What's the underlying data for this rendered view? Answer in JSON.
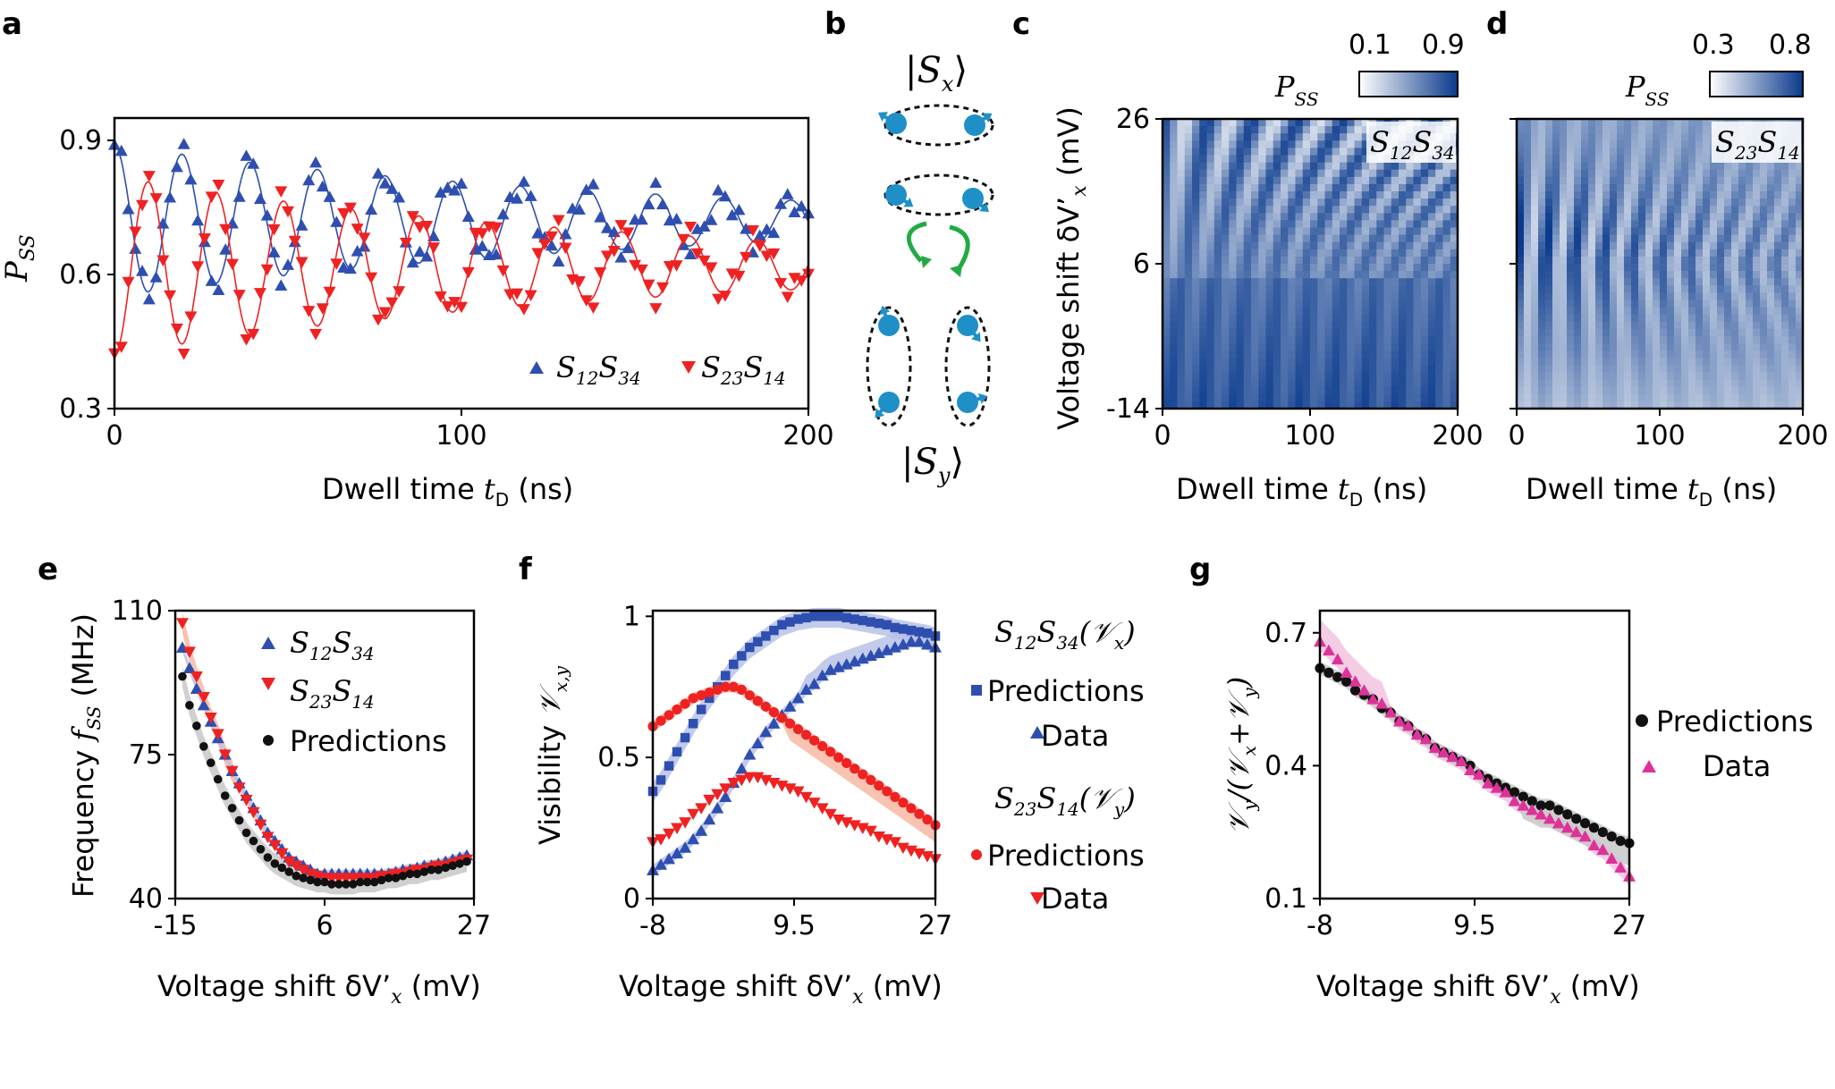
{
  "colors": {
    "blue": "#2e4fb0",
    "red": "#ee2222",
    "black": "#111111",
    "magenta": "#dd3399",
    "green": "#22aa44",
    "spin": "#1f8fc7",
    "band_blue": "#b8c2e6",
    "band_red": "#f7b9a3",
    "band_gray": "#c8c8c8",
    "band_pink": "#f2c4e0"
  },
  "panels": {
    "a": {
      "label": "a",
      "ylabel_main": "P",
      "ylabel_sub": "SS",
      "xlabel_main": "Dwell time ",
      "xlabel_var": "t",
      "xlabel_sub": "D",
      "xlabel_unit": " (ns)",
      "legend": [
        {
          "main": "S",
          "sub1": "12",
          "main2": "S",
          "sub2": "34"
        },
        {
          "main": "S",
          "sub1": "23",
          "main2": "S",
          "sub2": "14"
        }
      ]
    },
    "b": {
      "label": "b",
      "top_ket": "S",
      "top_sub": "x",
      "bottom_ket": "S",
      "bottom_sub": "y"
    },
    "c": {
      "label": "c",
      "cb_label": "P",
      "cb_sub": "SS",
      "cb_min": "0.1",
      "cb_max": "0.9",
      "inset_main": "S",
      "inset_sub1": "12",
      "inset_main2": "S",
      "inset_sub2": "34",
      "ylabel": "Voltage shift δV’",
      "ylabel_sub": "x",
      "ylabel_unit": " (mV)",
      "xlabel_main": "Dwell time ",
      "xlabel_var": "t",
      "xlabel_sub": "D",
      "xlabel_unit": " (ns)"
    },
    "d": {
      "label": "d",
      "cb_label": "P",
      "cb_sub": "SS",
      "cb_min": "0.3",
      "cb_max": "0.8",
      "inset_main": "S",
      "inset_sub1": "23",
      "inset_main2": "S",
      "inset_sub2": "14",
      "xlabel_main": "Dwell time ",
      "xlabel_var": "t",
      "xlabel_sub": "D",
      "xlabel_unit": " (ns)"
    },
    "e": {
      "label": "e",
      "ylabel_main": "Frequency ",
      "ylabel_var": "f",
      "ylabel_sub": "SS",
      "ylabel_unit": " (MHz)",
      "xlabel": "Voltage shift δV’",
      "xlabel_sub": "x",
      "xlabel_unit": " (mV)",
      "legend": [
        {
          "main": "S",
          "sub1": "12",
          "main2": "S",
          "sub2": "34"
        },
        {
          "main": "S",
          "sub1": "23",
          "main2": "S",
          "sub2": "14"
        },
        {
          "text": "Predictions"
        }
      ]
    },
    "f": {
      "label": "f",
      "ylabel_main": "Visibility ",
      "ylabel_var": "𝒱",
      "ylabel_sub": "x,y",
      "xlabel": "Voltage shift δV’",
      "xlabel_sub": "x",
      "xlabel_unit": " (mV)",
      "legend_head1": {
        "main": "S",
        "sub1": "12",
        "main2": "S",
        "sub2": "34",
        "paren": "(𝒱",
        "psub": "x",
        "close": ")"
      },
      "legend_head2": {
        "main": "S",
        "sub1": "23",
        "main2": "S",
        "sub2": "14",
        "paren": "(𝒱",
        "psub": "y",
        "close": ")"
      },
      "pred": "Predictions",
      "data": "Data"
    },
    "g": {
      "label": "g",
      "ylabel": "𝒱",
      "ylabel_sub": "y",
      "ylabel_mid": "/(𝒱",
      "ylabel_sub2": "x",
      "ylabel_plus": "+𝒱",
      "ylabel_sub3": "y",
      "ylabel_close": ")",
      "xlabel": "Voltage shift δV’",
      "xlabel_sub": "x",
      "xlabel_unit": " (mV)",
      "pred": "Predictions",
      "data": "Data"
    }
  },
  "chart_data": [
    {
      "id": "a",
      "type": "scatter",
      "xlim": [
        0,
        200
      ],
      "ylim": [
        0.3,
        0.95
      ],
      "xticks": [
        "0",
        "100",
        "200"
      ],
      "yticks": [
        "0.3",
        "0.6",
        "0.9"
      ],
      "series": [
        {
          "name": "S12S34",
          "marker": "triangle-up",
          "model": {
            "offset": 0.72,
            "amp": 0.17,
            "period": 19.5,
            "tau": 150,
            "phase": 0.0
          }
        },
        {
          "name": "S23S14",
          "marker": "triangle-down",
          "model": {
            "offset": 0.62,
            "amp": 0.2,
            "period": 19.5,
            "tau": 150,
            "phase": 3.14
          }
        }
      ]
    },
    {
      "id": "c",
      "type": "heatmap",
      "xlim": [
        0,
        200
      ],
      "ylim": [
        -14,
        26
      ],
      "xticks": [
        "0",
        "100",
        "200"
      ],
      "yticks": [
        "-14",
        "6",
        "26"
      ],
      "crange": [
        0.1,
        0.9
      ]
    },
    {
      "id": "d",
      "type": "heatmap",
      "xlim": [
        0,
        200
      ],
      "ylim": [
        -14,
        26
      ],
      "xticks": [
        "0",
        "100",
        "200"
      ],
      "crange": [
        0.3,
        0.8
      ]
    },
    {
      "id": "e",
      "type": "scatter",
      "xlim": [
        -15,
        27
      ],
      "ylim": [
        40,
        110
      ],
      "xticks": [
        "-15",
        "6",
        "27"
      ],
      "yticks": [
        "40",
        "75",
        "110"
      ],
      "series": [
        {
          "name": "S12S34",
          "x": [
            -14,
            -13,
            -12,
            -11,
            -10,
            -9,
            -8,
            -7,
            -6,
            -5,
            -4,
            -3,
            -2,
            -1,
            0,
            1,
            2,
            3,
            4,
            5,
            6,
            7,
            8,
            9,
            10,
            11,
            12,
            13,
            14,
            15,
            16,
            17,
            18,
            19,
            20,
            21,
            22,
            23,
            24,
            25,
            26
          ],
          "y": [
            101,
            96,
            91,
            87,
            83,
            79,
            75,
            71,
            68,
            65,
            62,
            59,
            56,
            54,
            52,
            50,
            49,
            48,
            47,
            46,
            46,
            46,
            46,
            46,
            46,
            46,
            46,
            46,
            46,
            46,
            46.5,
            47,
            47,
            47.5,
            48,
            48,
            48.5,
            49,
            49.5,
            50,
            50.5
          ]
        },
        {
          "name": "S23S14",
          "x": [
            -14,
            -13,
            -12,
            -11,
            -10,
            -9,
            -8,
            -7,
            -6,
            -5,
            -4,
            -3,
            -2,
            -1,
            0,
            1,
            2,
            3,
            4,
            5,
            6,
            7,
            8,
            9,
            10,
            11,
            12,
            13,
            14,
            15,
            16,
            17,
            18,
            19,
            20,
            21,
            22,
            23,
            24,
            25,
            26
          ],
          "y": [
            107,
            100,
            94,
            89,
            84,
            80,
            75,
            71,
            67,
            64,
            61,
            58,
            55,
            53,
            51,
            49,
            48,
            47,
            46,
            45.5,
            45,
            45,
            45,
            45,
            45,
            45,
            45,
            45,
            45.5,
            45.5,
            46,
            46,
            46.5,
            47,
            47,
            47.5,
            48,
            48,
            48.5,
            49,
            49.5
          ]
        },
        {
          "name": "Predictions",
          "x": [
            -14,
            -13,
            -12,
            -11,
            -10,
            -9,
            -8,
            -7,
            -6,
            -5,
            -4,
            -3,
            -2,
            -1,
            0,
            1,
            2,
            3,
            4,
            5,
            6,
            7,
            8,
            9,
            10,
            11,
            12,
            13,
            14,
            15,
            16,
            17,
            18,
            19,
            20,
            21,
            22,
            23,
            24,
            25,
            26
          ],
          "y": [
            94,
            87,
            82,
            77,
            73,
            69,
            65,
            62,
            59,
            56,
            54,
            52,
            50,
            48.5,
            47.5,
            46.5,
            45.5,
            45,
            44.5,
            44,
            44,
            43.5,
            43.5,
            43.5,
            43.5,
            44,
            44,
            44,
            44.5,
            45,
            45,
            45.5,
            46,
            46,
            46.5,
            47,
            47,
            47.5,
            48,
            48.5,
            49
          ]
        }
      ]
    },
    {
      "id": "f",
      "type": "scatter",
      "xlim": [
        -8,
        27
      ],
      "ylim": [
        0,
        1.02
      ],
      "xticks": [
        "-8",
        "9.5",
        "27"
      ],
      "yticks": [
        "0",
        "0.5",
        "1"
      ],
      "series": [
        {
          "name": "S12S34 Predictions",
          "marker": "square",
          "x": [
            -8,
            -7,
            -6,
            -5,
            -4,
            -3,
            -2,
            -1,
            0,
            1,
            2,
            3,
            4,
            5,
            6,
            7,
            8,
            9,
            10,
            11,
            12,
            13,
            14,
            15,
            16,
            17,
            18,
            19,
            20,
            21,
            22,
            23,
            24,
            25,
            26,
            27
          ],
          "y": [
            0.38,
            0.42,
            0.47,
            0.52,
            0.57,
            0.62,
            0.67,
            0.71,
            0.75,
            0.79,
            0.83,
            0.86,
            0.89,
            0.91,
            0.93,
            0.95,
            0.97,
            0.98,
            0.99,
            0.995,
            1.0,
            1.0,
            1.0,
            1.0,
            0.995,
            0.99,
            0.985,
            0.98,
            0.975,
            0.97,
            0.96,
            0.955,
            0.95,
            0.945,
            0.94,
            0.93
          ]
        },
        {
          "name": "S12S34 Data",
          "marker": "triangle-up",
          "x": [
            -8,
            -7,
            -6,
            -5,
            -4,
            -3,
            -2,
            -1,
            0,
            1,
            2,
            3,
            4,
            5,
            6,
            7,
            8,
            9,
            10,
            11,
            12,
            13,
            14,
            15,
            16,
            17,
            18,
            19,
            20,
            21,
            22,
            23,
            24,
            25,
            26,
            27
          ],
          "y": [
            0.1,
            0.12,
            0.14,
            0.16,
            0.18,
            0.21,
            0.24,
            0.28,
            0.32,
            0.36,
            0.41,
            0.46,
            0.51,
            0.55,
            0.59,
            0.62,
            0.65,
            0.68,
            0.71,
            0.74,
            0.76,
            0.79,
            0.81,
            0.82,
            0.83,
            0.84,
            0.85,
            0.86,
            0.87,
            0.88,
            0.89,
            0.9,
            0.91,
            0.91,
            0.9,
            0.89
          ]
        },
        {
          "name": "S23S14 Predictions",
          "marker": "circle",
          "x": [
            -8,
            -7,
            -6,
            -5,
            -4,
            -3,
            -2,
            -1,
            0,
            1,
            2,
            3,
            4,
            5,
            6,
            7,
            8,
            9,
            10,
            11,
            12,
            13,
            14,
            15,
            16,
            17,
            18,
            19,
            20,
            21,
            22,
            23,
            24,
            25,
            26,
            27
          ],
          "y": [
            0.61,
            0.63,
            0.65,
            0.67,
            0.69,
            0.71,
            0.72,
            0.73,
            0.74,
            0.75,
            0.75,
            0.74,
            0.72,
            0.7,
            0.68,
            0.66,
            0.64,
            0.62,
            0.6,
            0.58,
            0.56,
            0.54,
            0.52,
            0.5,
            0.48,
            0.46,
            0.44,
            0.42,
            0.4,
            0.38,
            0.36,
            0.34,
            0.32,
            0.3,
            0.28,
            0.26
          ]
        },
        {
          "name": "S23S14 Data",
          "marker": "triangle-down",
          "x": [
            -8,
            -7,
            -6,
            -5,
            -4,
            -3,
            -2,
            -1,
            0,
            1,
            2,
            3,
            4,
            5,
            6,
            7,
            8,
            9,
            10,
            11,
            12,
            13,
            14,
            15,
            16,
            17,
            18,
            19,
            20,
            21,
            22,
            23,
            24,
            25,
            26,
            27
          ],
          "y": [
            0.2,
            0.21,
            0.23,
            0.25,
            0.27,
            0.3,
            0.32,
            0.35,
            0.37,
            0.39,
            0.41,
            0.42,
            0.43,
            0.43,
            0.42,
            0.41,
            0.4,
            0.39,
            0.38,
            0.36,
            0.34,
            0.32,
            0.3,
            0.28,
            0.27,
            0.26,
            0.25,
            0.24,
            0.22,
            0.21,
            0.2,
            0.18,
            0.17,
            0.16,
            0.15,
            0.14
          ]
        }
      ]
    },
    {
      "id": "g",
      "type": "scatter",
      "xlim": [
        -8,
        27
      ],
      "ylim": [
        0.1,
        0.75
      ],
      "xticks": [
        "-8",
        "9.5",
        "27"
      ],
      "yticks": [
        "0.1",
        "0.4",
        "0.7"
      ],
      "series": [
        {
          "name": "Predictions",
          "marker": "circle",
          "x": [
            -8,
            -7,
            -6,
            -5,
            -4,
            -3,
            -2,
            -1,
            0,
            1,
            2,
            3,
            4,
            5,
            6,
            7,
            8,
            9,
            10,
            11,
            12,
            13,
            14,
            15,
            16,
            17,
            18,
            19,
            20,
            21,
            22,
            23,
            24,
            25,
            26,
            27
          ],
          "y": [
            0.62,
            0.61,
            0.6,
            0.59,
            0.57,
            0.56,
            0.55,
            0.53,
            0.52,
            0.5,
            0.49,
            0.47,
            0.46,
            0.44,
            0.43,
            0.42,
            0.41,
            0.4,
            0.38,
            0.37,
            0.36,
            0.35,
            0.34,
            0.33,
            0.32,
            0.31,
            0.31,
            0.3,
            0.29,
            0.28,
            0.27,
            0.26,
            0.25,
            0.24,
            0.23,
            0.225
          ]
        },
        {
          "name": "Data",
          "marker": "triangle-up",
          "x": [
            -8,
            -7,
            -6,
            -5,
            -4,
            -3,
            -2,
            -1,
            0,
            1,
            2,
            3,
            4,
            5,
            6,
            7,
            8,
            9,
            10,
            11,
            12,
            13,
            14,
            15,
            16,
            17,
            18,
            19,
            20,
            21,
            22,
            23,
            24,
            25,
            26,
            27
          ],
          "y": [
            0.68,
            0.66,
            0.64,
            0.61,
            0.59,
            0.57,
            0.55,
            0.54,
            0.52,
            0.5,
            0.49,
            0.47,
            0.46,
            0.44,
            0.43,
            0.42,
            0.41,
            0.39,
            0.38,
            0.36,
            0.35,
            0.34,
            0.32,
            0.31,
            0.3,
            0.29,
            0.28,
            0.27,
            0.26,
            0.25,
            0.24,
            0.22,
            0.21,
            0.19,
            0.17,
            0.15
          ]
        }
      ]
    }
  ]
}
